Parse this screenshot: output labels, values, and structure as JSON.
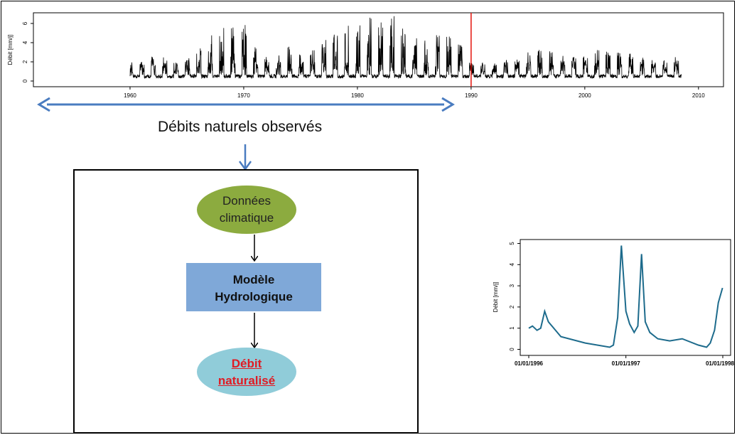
{
  "top_chart": {
    "ylabel": "Débit [mm/j]",
    "y_ticks": [
      "0",
      "2",
      "4",
      "6"
    ],
    "x_ticks": [
      "1960",
      "1970",
      "1980",
      "1990",
      "2000",
      "2010"
    ],
    "split_year": 1990,
    "colors": {
      "series": "#000000",
      "split": "#e3120b"
    }
  },
  "arrow_caption": "Débits naturels observés",
  "flow": {
    "node1": {
      "line1": "Données",
      "line2": "climatique",
      "color": "#8cab3f"
    },
    "node2": {
      "line1": "Modèle",
      "line2": "Hydrologique",
      "color": "#7fa8d8"
    },
    "node3": {
      "line1": "Débit",
      "line2": "naturalisé",
      "color": "#90ccd9",
      "text_color": "#e01b24"
    }
  },
  "zoom_chart": {
    "ylabel": "Débit [mm/j]",
    "y_ticks": [
      "0",
      "1",
      "2",
      "3",
      "4",
      "5"
    ],
    "x_ticks": [
      "01/01/1996",
      "01/01/1997",
      "01/01/1998"
    ],
    "color": "#1d6b8c"
  },
  "chart_data": [
    {
      "type": "line",
      "xlabel": "",
      "ylabel": "Débit [mm/j]",
      "xlim": [
        1960,
        2010
      ],
      "ylim": [
        0,
        7
      ],
      "annotation": "vertical line at 1990",
      "x": [
        1960,
        1962,
        1964,
        1966,
        1968,
        1970,
        1972,
        1974,
        1976,
        1978,
        1980,
        1982,
        1983,
        1984,
        1986,
        1988,
        1990,
        1992,
        1994,
        1996,
        1998,
        2000,
        2002,
        2004,
        2006,
        2008.5
      ],
      "y": [
        1.2,
        2.8,
        2.2,
        3.5,
        5.8,
        6.2,
        2.5,
        4.1,
        3.2,
        5.0,
        6.3,
        6.9,
        7.2,
        5.6,
        4.2,
        5.8,
        2.1,
        1.8,
        2.6,
        3.4,
        2.8,
        3.1,
        3.5,
        2.9,
        2.2,
        2.6
      ]
    },
    {
      "type": "line",
      "xlabel": "",
      "ylabel": "Débit [mm/j]",
      "xlim": [
        "01/01/1996",
        "01/01/1998"
      ],
      "ylim": [
        0,
        5
      ],
      "x": [
        "01/01/1996",
        "15/01/1996",
        "01/02/1996",
        "15/02/1996",
        "01/03/1996",
        "15/03/1996",
        "01/05/1996",
        "01/08/1996",
        "01/11/1996",
        "15/11/1996",
        "01/12/1996",
        "15/12/1996",
        "01/01/1997",
        "15/01/1997",
        "01/02/1997",
        "15/02/1997",
        "01/03/1997",
        "15/03/1997",
        "01/04/1997",
        "01/05/1997",
        "15/06/1997",
        "01/08/1997",
        "01/10/1997",
        "01/11/1997",
        "15/11/1997",
        "01/12/1997",
        "15/12/1997",
        "31/12/1997"
      ],
      "y": [
        1.0,
        1.1,
        0.9,
        1.0,
        1.8,
        1.3,
        0.6,
        0.3,
        0.1,
        0.2,
        1.5,
        4.9,
        1.8,
        1.2,
        0.8,
        1.1,
        4.5,
        1.3,
        0.8,
        0.5,
        0.4,
        0.5,
        0.2,
        0.1,
        0.3,
        0.9,
        2.2,
        2.9
      ]
    }
  ]
}
